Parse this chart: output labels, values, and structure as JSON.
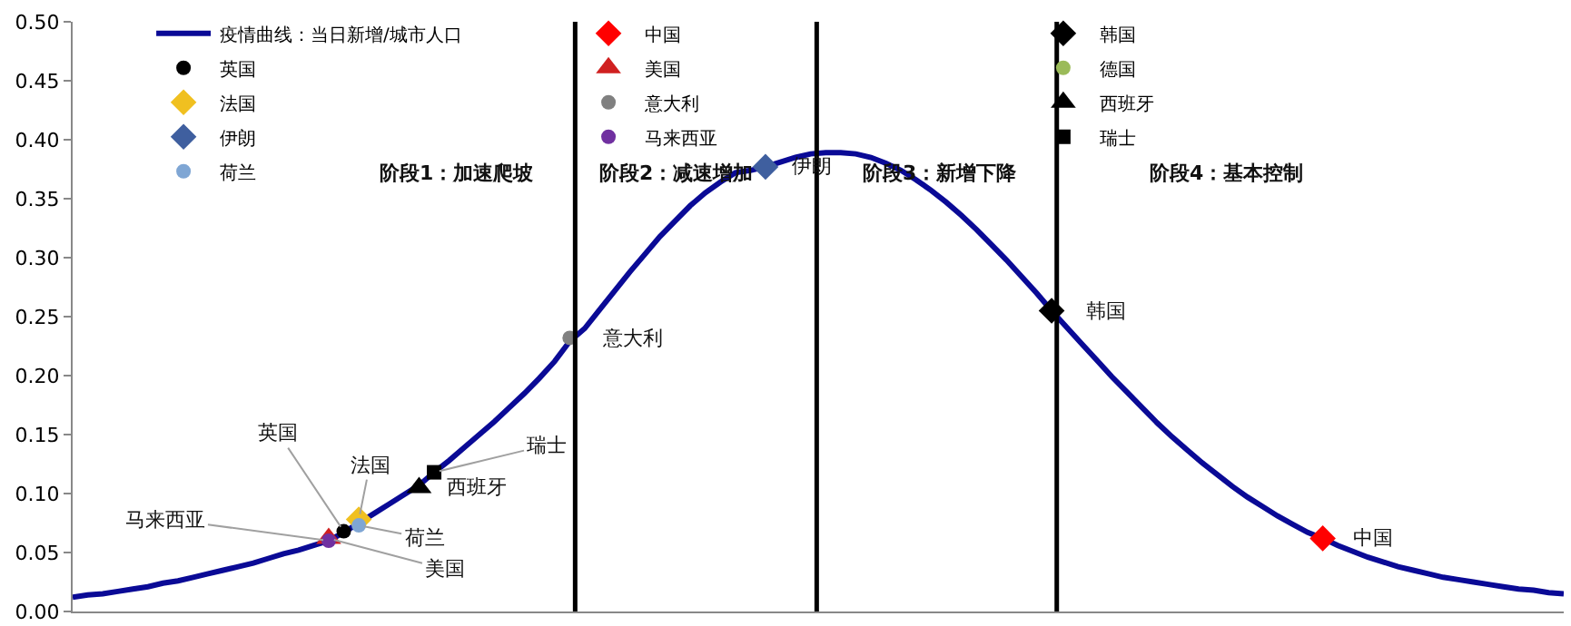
{
  "chart_data": {
    "type": "line",
    "categories": [
      null,
      null,
      null,
      null,
      null,
      null,
      null,
      null,
      null,
      null,
      null,
      null,
      null,
      null,
      null,
      null,
      null,
      null,
      null,
      null,
      null,
      null,
      null,
      null,
      null,
      null,
      null,
      null,
      null,
      null,
      null,
      null,
      null,
      null,
      null,
      null,
      null,
      null,
      null,
      null,
      null,
      null,
      null,
      null,
      null,
      null,
      null,
      null,
      null,
      null,
      null,
      null,
      null,
      null,
      null,
      null,
      null,
      null,
      null,
      null,
      null,
      null,
      null,
      null,
      null,
      null,
      null,
      null,
      null,
      null,
      null,
      null,
      null,
      null,
      null,
      null,
      null,
      null,
      null,
      null,
      null,
      null,
      null,
      null,
      null,
      null,
      null,
      null,
      null,
      null,
      null,
      null,
      null,
      null,
      null,
      null,
      null,
      null,
      null,
      null
    ],
    "ylim": [
      0,
      0.5
    ],
    "yticks": [
      {
        "value": 0,
        "label": "0.00"
      },
      {
        "value": 0.05,
        "label": "0.05"
      },
      {
        "value": 0.1,
        "label": "0.10"
      },
      {
        "value": 0.15,
        "label": "0.15"
      },
      {
        "value": 0.2,
        "label": "0.20"
      },
      {
        "value": 0.25,
        "label": "0.25"
      },
      {
        "value": 0.3,
        "label": "0.30"
      },
      {
        "value": 0.35,
        "label": "0.35"
      },
      {
        "value": 0.4,
        "label": "0.40"
      },
      {
        "value": 0.45,
        "label": "0.45"
      },
      {
        "value": 0.5,
        "label": "0.50"
      }
    ],
    "tick_labels": "y",
    "legend": "top",
    "series": [
      {
        "name": "疫情曲线：当日新增/城市人口",
        "color": "#0a0a96",
        "marker": "none",
        "line_style": "solid",
        "values": [
          0.012,
          0.014,
          0.015,
          0.017,
          0.019,
          0.021,
          0.024,
          0.026,
          0.029,
          0.032,
          0.035,
          0.038,
          0.041,
          0.045,
          0.049,
          0.052,
          0.056,
          0.06,
          0.067,
          0.075,
          0.083,
          0.091,
          0.099,
          0.107,
          0.118,
          0.128,
          0.139,
          0.15,
          0.161,
          0.173,
          0.185,
          0.198,
          0.212,
          0.229,
          0.24,
          0.256,
          0.272,
          0.288,
          0.303,
          0.318,
          0.331,
          0.344,
          0.355,
          0.364,
          0.372,
          0.374,
          0.377,
          0.381,
          0.385,
          0.388,
          0.389,
          0.389,
          0.388,
          0.385,
          0.38,
          0.374,
          0.366,
          0.357,
          0.347,
          0.336,
          0.324,
          0.311,
          0.298,
          0.284,
          0.27,
          0.255,
          0.241,
          0.227,
          0.213,
          0.199,
          0.186,
          0.173,
          0.16,
          0.148,
          0.137,
          0.126,
          0.116,
          0.106,
          0.097,
          0.089,
          0.081,
          0.074,
          0.067,
          0.062,
          0.056,
          0.051,
          0.046,
          0.042,
          0.038,
          0.035,
          0.032,
          0.029,
          0.027,
          0.025,
          0.023,
          0.021,
          0.019,
          0.018,
          0.016,
          0.015
        ]
      },
      {
        "name": "英国",
        "type": "scatter",
        "color": "#000000",
        "marker": "circle",
        "values": [
          null,
          null,
          null,
          null,
          null,
          null,
          null,
          null,
          null,
          null,
          null,
          null,
          null,
          null,
          null,
          null,
          null,
          null,
          0.068,
          null,
          null,
          null,
          null,
          null,
          null,
          null,
          null,
          null,
          null,
          null,
          null,
          null,
          null,
          null,
          null,
          null,
          null,
          null,
          null,
          null,
          null,
          null,
          null,
          null,
          null,
          null,
          null,
          null,
          null,
          null,
          null,
          null,
          null,
          null,
          null,
          null,
          null,
          null,
          null,
          null,
          null,
          null,
          null,
          null,
          null,
          null,
          null,
          null,
          null,
          null,
          null,
          null,
          null,
          null,
          null,
          null,
          null,
          null,
          null,
          null,
          null,
          null,
          null,
          null,
          null,
          null,
          null,
          null,
          null,
          null,
          null,
          null,
          null,
          null,
          null,
          null,
          null,
          null,
          null,
          null
        ]
      },
      {
        "name": "法国",
        "type": "scatter",
        "color": "#f0c020",
        "marker": "diamond",
        "values": [
          null,
          null,
          null,
          null,
          null,
          null,
          null,
          null,
          null,
          null,
          null,
          null,
          null,
          null,
          null,
          null,
          null,
          null,
          null,
          0.078,
          null,
          null,
          null,
          null,
          null,
          null,
          null,
          null,
          null,
          null,
          null,
          null,
          null,
          null,
          null,
          null,
          null,
          null,
          null,
          null,
          null,
          null,
          null,
          null,
          null,
          null,
          null,
          null,
          null,
          null,
          null,
          null,
          null,
          null,
          null,
          null,
          null,
          null,
          null,
          null,
          null,
          null,
          null,
          null,
          null,
          null,
          null,
          null,
          null,
          null,
          null,
          null,
          null,
          null,
          null,
          null,
          null,
          null,
          null,
          null,
          null,
          null,
          null,
          null,
          null,
          null,
          null,
          null,
          null,
          null,
          null,
          null,
          null,
          null,
          null,
          null,
          null,
          null,
          null,
          null
        ]
      },
      {
        "name": "伊朗",
        "type": "scatter",
        "color": "#3f5f9f",
        "marker": "diamond",
        "values": [
          null,
          null,
          null,
          null,
          null,
          null,
          null,
          null,
          null,
          null,
          null,
          null,
          null,
          null,
          null,
          null,
          null,
          null,
          null,
          null,
          null,
          null,
          null,
          null,
          null,
          null,
          null,
          null,
          null,
          null,
          null,
          null,
          null,
          null,
          null,
          null,
          null,
          null,
          null,
          null,
          null,
          null,
          null,
          null,
          null,
          null,
          0.377,
          null,
          null,
          null,
          null,
          null,
          null,
          null,
          null,
          null,
          null,
          null,
          null,
          null,
          null,
          null,
          null,
          null,
          null,
          null,
          null,
          null,
          null,
          null,
          null,
          null,
          null,
          null,
          null,
          null,
          null,
          null,
          null,
          null,
          null,
          null,
          null,
          null,
          null,
          null,
          null,
          null,
          null,
          null,
          null,
          null,
          null,
          null,
          null,
          null,
          null,
          null,
          null,
          null
        ]
      },
      {
        "name": "荷兰",
        "type": "scatter",
        "color": "#7fa6d4",
        "marker": "circle",
        "values": [
          null,
          null,
          null,
          null,
          null,
          null,
          null,
          null,
          null,
          null,
          null,
          null,
          null,
          null,
          null,
          null,
          null,
          null,
          null,
          0.073,
          null,
          null,
          null,
          null,
          null,
          null,
          null,
          null,
          null,
          null,
          null,
          null,
          null,
          null,
          null,
          null,
          null,
          null,
          null,
          null,
          null,
          null,
          null,
          null,
          null,
          null,
          null,
          null,
          null,
          null,
          null,
          null,
          null,
          null,
          null,
          null,
          null,
          null,
          null,
          null,
          null,
          null,
          null,
          null,
          null,
          null,
          null,
          null,
          null,
          null,
          null,
          null,
          null,
          null,
          null,
          null,
          null,
          null,
          null,
          null,
          null,
          null,
          null,
          null,
          null,
          null,
          null,
          null,
          null,
          null,
          null,
          null,
          null,
          null,
          null,
          null,
          null,
          null,
          null,
          null
        ]
      },
      {
        "name": "中国",
        "type": "scatter",
        "color": "#ff0000",
        "marker": "diamond",
        "values": [
          null,
          null,
          null,
          null,
          null,
          null,
          null,
          null,
          null,
          null,
          null,
          null,
          null,
          null,
          null,
          null,
          null,
          null,
          null,
          null,
          null,
          null,
          null,
          null,
          null,
          null,
          null,
          null,
          null,
          null,
          null,
          null,
          null,
          null,
          null,
          null,
          null,
          null,
          null,
          null,
          null,
          null,
          null,
          null,
          null,
          null,
          null,
          null,
          null,
          null,
          null,
          null,
          null,
          null,
          null,
          null,
          null,
          null,
          null,
          null,
          null,
          null,
          null,
          null,
          null,
          null,
          null,
          null,
          null,
          null,
          null,
          null,
          null,
          null,
          null,
          null,
          null,
          null,
          null,
          null,
          null,
          null,
          null,
          0.062,
          null,
          null,
          null,
          null,
          null,
          null,
          null,
          null,
          null,
          null,
          null,
          null,
          null,
          null,
          null,
          null
        ]
      },
      {
        "name": "美国",
        "type": "scatter",
        "color": "#d02020",
        "marker": "triangle",
        "values": [
          null,
          null,
          null,
          null,
          null,
          null,
          null,
          null,
          null,
          null,
          null,
          null,
          null,
          null,
          null,
          null,
          null,
          0.062,
          null,
          null,
          null,
          null,
          null,
          null,
          null,
          null,
          null,
          null,
          null,
          null,
          null,
          null,
          null,
          null,
          null,
          null,
          null,
          null,
          null,
          null,
          null,
          null,
          null,
          null,
          null,
          null,
          null,
          null,
          null,
          null,
          null,
          null,
          null,
          null,
          null,
          null,
          null,
          null,
          null,
          null,
          null,
          null,
          null,
          null,
          null,
          null,
          null,
          null,
          null,
          null,
          null,
          null,
          null,
          null,
          null,
          null,
          null,
          null,
          null,
          null,
          null,
          null,
          null,
          null,
          null,
          null,
          null,
          null,
          null,
          null,
          null,
          null,
          null,
          null,
          null,
          null,
          null,
          null,
          null,
          null
        ]
      },
      {
        "name": "意大利",
        "type": "scatter",
        "color": "#808080",
        "marker": "circle",
        "values": [
          null,
          null,
          null,
          null,
          null,
          null,
          null,
          null,
          null,
          null,
          null,
          null,
          null,
          null,
          null,
          null,
          null,
          null,
          null,
          null,
          null,
          null,
          null,
          null,
          null,
          null,
          null,
          null,
          null,
          null,
          null,
          null,
          null,
          0.232,
          null,
          null,
          null,
          null,
          null,
          null,
          null,
          null,
          null,
          null,
          null,
          null,
          null,
          null,
          null,
          null,
          null,
          null,
          null,
          null,
          null,
          null,
          null,
          null,
          null,
          null,
          null,
          null,
          null,
          null,
          null,
          null,
          null,
          null,
          null,
          null,
          null,
          null,
          null,
          null,
          null,
          null,
          null,
          null,
          null,
          null,
          null,
          null,
          null,
          null,
          null,
          null,
          null,
          null,
          null,
          null,
          null,
          null,
          null,
          null,
          null,
          null,
          null,
          null,
          null,
          null
        ]
      },
      {
        "name": "马来西亚",
        "type": "scatter",
        "color": "#7030a0",
        "marker": "circle",
        "values": [
          null,
          null,
          null,
          null,
          null,
          null,
          null,
          null,
          null,
          null,
          null,
          null,
          null,
          null,
          null,
          null,
          null,
          0.06,
          null,
          null,
          null,
          null,
          null,
          null,
          null,
          null,
          null,
          null,
          null,
          null,
          null,
          null,
          null,
          null,
          null,
          null,
          null,
          null,
          null,
          null,
          null,
          null,
          null,
          null,
          null,
          null,
          null,
          null,
          null,
          null,
          null,
          null,
          null,
          null,
          null,
          null,
          null,
          null,
          null,
          null,
          null,
          null,
          null,
          null,
          null,
          null,
          null,
          null,
          null,
          null,
          null,
          null,
          null,
          null,
          null,
          null,
          null,
          null,
          null,
          null,
          null,
          null,
          null,
          null,
          null,
          null,
          null,
          null,
          null,
          null,
          null,
          null,
          null,
          null,
          null,
          null,
          null,
          null,
          null,
          null
        ]
      },
      {
        "name": "韩国",
        "type": "scatter",
        "color": "#000000",
        "marker": "diamond",
        "values": [
          null,
          null,
          null,
          null,
          null,
          null,
          null,
          null,
          null,
          null,
          null,
          null,
          null,
          null,
          null,
          null,
          null,
          null,
          null,
          null,
          null,
          null,
          null,
          null,
          null,
          null,
          null,
          null,
          null,
          null,
          null,
          null,
          null,
          null,
          null,
          null,
          null,
          null,
          null,
          null,
          null,
          null,
          null,
          null,
          null,
          null,
          null,
          null,
          null,
          null,
          null,
          null,
          null,
          null,
          null,
          null,
          null,
          null,
          null,
          null,
          null,
          null,
          null,
          null,
          null,
          0.255,
          null,
          null,
          null,
          null,
          null,
          null,
          null,
          null,
          null,
          null,
          null,
          null,
          null,
          null,
          null,
          null,
          null,
          null,
          null,
          null,
          null,
          null,
          null,
          null,
          null,
          null,
          null,
          null,
          null,
          null,
          null,
          null,
          null,
          null
        ]
      },
      {
        "name": "德国",
        "type": "scatter",
        "color": "#9bbb59",
        "marker": "circle",
        "values": [
          null,
          null,
          null,
          null,
          null,
          null,
          null,
          null,
          null,
          null,
          null,
          null,
          null,
          null,
          null,
          null,
          null,
          null,
          null,
          null,
          null,
          null,
          null,
          null,
          null,
          null,
          null,
          null,
          null,
          null,
          null,
          null,
          null,
          null,
          null,
          null,
          null,
          null,
          null,
          null,
          null,
          null,
          null,
          null,
          null,
          null,
          null,
          null,
          null,
          null,
          null,
          null,
          null,
          null,
          null,
          null,
          null,
          null,
          null,
          null,
          null,
          null,
          null,
          null,
          null,
          null,
          null,
          null,
          null,
          null,
          null,
          null,
          null,
          null,
          null,
          null,
          null,
          null,
          null,
          null,
          null,
          null,
          null,
          null,
          null,
          null,
          null,
          null,
          null,
          null,
          null,
          null,
          null,
          null,
          null,
          null,
          null,
          null,
          null,
          null
        ]
      },
      {
        "name": "西班牙",
        "type": "scatter",
        "color": "#000000",
        "marker": "triangle",
        "values": [
          null,
          null,
          null,
          null,
          null,
          null,
          null,
          null,
          null,
          null,
          null,
          null,
          null,
          null,
          null,
          null,
          null,
          null,
          null,
          null,
          null,
          null,
          null,
          0.105,
          null,
          null,
          null,
          null,
          null,
          null,
          null,
          null,
          null,
          null,
          null,
          null,
          null,
          null,
          null,
          null,
          null,
          null,
          null,
          null,
          null,
          null,
          null,
          null,
          null,
          null,
          null,
          null,
          null,
          null,
          null,
          null,
          null,
          null,
          null,
          null,
          null,
          null,
          null,
          null,
          null,
          null,
          null,
          null,
          null,
          null,
          null,
          null,
          null,
          null,
          null,
          null,
          null,
          null,
          null,
          null,
          null,
          null,
          null,
          null,
          null,
          null,
          null,
          null,
          null,
          null,
          null,
          null,
          null,
          null,
          null,
          null,
          null,
          null,
          null,
          null
        ]
      },
      {
        "name": "瑞士",
        "type": "scatter",
        "color": "#000000",
        "marker": "square",
        "values": [
          null,
          null,
          null,
          null,
          null,
          null,
          null,
          null,
          null,
          null,
          null,
          null,
          null,
          null,
          null,
          null,
          null,
          null,
          null,
          null,
          null,
          null,
          null,
          null,
          0.118,
          null,
          null,
          null,
          null,
          null,
          null,
          null,
          null,
          null,
          null,
          null,
          null,
          null,
          null,
          null,
          null,
          null,
          null,
          null,
          null,
          null,
          null,
          null,
          null,
          null,
          null,
          null,
          null,
          null,
          null,
          null,
          null,
          null,
          null,
          null,
          null,
          null,
          null,
          null,
          null,
          null,
          null,
          null,
          null,
          null,
          null,
          null,
          null,
          null,
          null,
          null,
          null,
          null,
          null,
          null,
          null,
          null,
          null,
          null,
          null,
          null,
          null,
          null,
          null,
          null,
          null,
          null,
          null,
          null,
          null,
          null,
          null,
          null,
          null,
          null
        ]
      }
    ],
    "annotations": [
      "阶段1：加速爬坡",
      "阶段2：减速增加",
      "阶段3：新增下降",
      "阶段4：基本控制",
      "意大利",
      "伊朗",
      "韩国",
      "中国",
      "瑞士",
      "西班牙",
      "法国",
      "英国",
      "马来西亚",
      "荷兰",
      "美国"
    ]
  }
}
